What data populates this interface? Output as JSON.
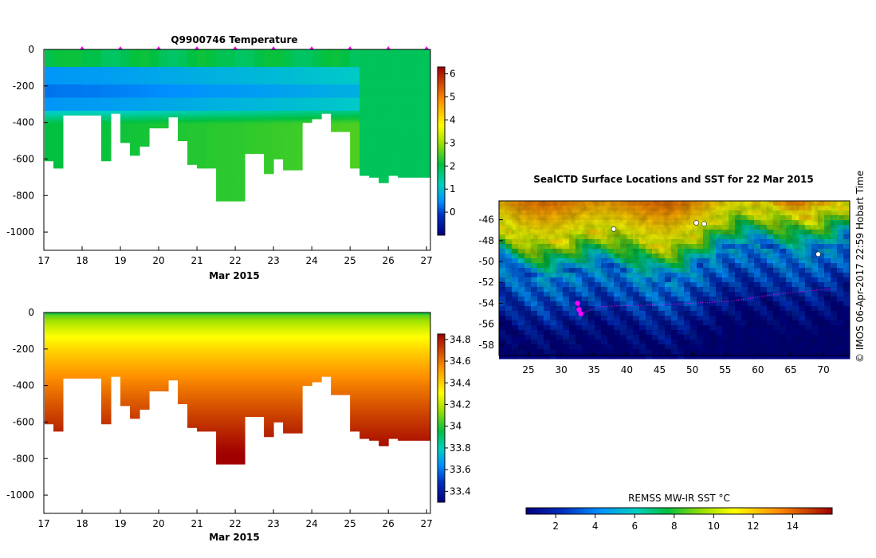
{
  "chart_data": [
    {
      "type": "heatmap",
      "title": "Q9900746  Temperature",
      "xlabel": "Mar 2015",
      "ylabel": "",
      "x_ticks": [
        "17",
        "18",
        "19",
        "20",
        "21",
        "22",
        "23",
        "24",
        "25",
        "26",
        "27"
      ],
      "xlim": [
        17,
        27.1
      ],
      "y_ticks": [
        "0",
        "-200",
        "-400",
        "-600",
        "-800",
        "-1000"
      ],
      "ylim": [
        -1100,
        0
      ],
      "colorbar": {
        "ticks": [
          "6",
          "5",
          "4",
          "3",
          "2",
          "1",
          "0"
        ],
        "range": [
          -1,
          6.3
        ]
      },
      "profile_days": [
        17.0,
        17.25,
        17.5,
        18.0,
        18.5,
        18.75,
        19.0,
        19.25,
        19.5,
        19.75,
        20.0,
        20.25,
        20.5,
        20.75,
        21.0,
        21.25,
        21.5,
        22.0,
        22.25,
        22.5,
        22.75,
        23.0,
        23.25,
        23.5,
        23.75,
        24.0,
        24.25,
        24.5,
        24.75,
        25.0,
        25.25,
        25.5,
        25.75,
        26.0,
        26.25,
        26.5,
        26.75,
        27.0
      ],
      "max_depth_m": [
        610,
        650,
        360,
        360,
        610,
        350,
        510,
        580,
        530,
        430,
        430,
        370,
        500,
        630,
        650,
        650,
        830,
        830,
        570,
        570,
        680,
        600,
        660,
        660,
        400,
        380,
        350,
        450,
        450,
        650,
        690,
        700,
        730,
        690,
        700,
        700,
        700,
        700
      ],
      "surface_markers_days": [
        18,
        19,
        20,
        21,
        22,
        23,
        24,
        25,
        26,
        27
      ]
    },
    {
      "type": "heatmap",
      "title": "",
      "xlabel": "Mar 2015",
      "ylabel": "",
      "x_ticks": [
        "17",
        "18",
        "19",
        "20",
        "21",
        "22",
        "23",
        "24",
        "25",
        "26",
        "27"
      ],
      "xlim": [
        17,
        27.1
      ],
      "y_ticks": [
        "0",
        "-200",
        "-400",
        "-600",
        "-800",
        "-1000"
      ],
      "ylim": [
        -1100,
        0
      ],
      "colorbar": {
        "ticks": [
          "34.8",
          "34.6",
          "34.4",
          "34.2",
          "34",
          "33.8",
          "33.6",
          "33.4"
        ],
        "range": [
          33.3,
          34.85
        ]
      },
      "profile_days": [
        17.0,
        17.25,
        17.5,
        18.0,
        18.5,
        18.75,
        19.0,
        19.25,
        19.5,
        19.75,
        20.0,
        20.25,
        20.5,
        20.75,
        21.0,
        21.25,
        21.5,
        22.0,
        22.25,
        22.5,
        22.75,
        23.0,
        23.25,
        23.5,
        23.75,
        24.0,
        24.25,
        24.5,
        24.75,
        25.0,
        25.25,
        25.5,
        25.75,
        26.0,
        26.25,
        26.5,
        26.75,
        27.0
      ],
      "max_depth_m": [
        610,
        650,
        360,
        360,
        610,
        350,
        510,
        580,
        530,
        430,
        430,
        370,
        500,
        630,
        650,
        650,
        830,
        830,
        570,
        570,
        680,
        600,
        660,
        660,
        400,
        380,
        350,
        450,
        450,
        650,
        690,
        700,
        730,
        690,
        700,
        700,
        700,
        700
      ]
    },
    {
      "type": "heatmap",
      "title": "SealCTD Surface Locations and SST for 22 Mar 2015",
      "xlabel": "",
      "ylabel": "",
      "x_ticks": [
        "25",
        "30",
        "35",
        "40",
        "45",
        "50",
        "55",
        "60",
        "65",
        "70"
      ],
      "xlim": [
        20.5,
        74
      ],
      "y_ticks": [
        "-46",
        "-48",
        "-50",
        "-52",
        "-54",
        "-56",
        "-58"
      ],
      "ylim": [
        -59,
        -44.2
      ],
      "colorbar": {
        "label": "REMSS MW-IR SST °C",
        "ticks": [
          "2",
          "4",
          "6",
          "8",
          "10",
          "12",
          "14"
        ],
        "range": [
          0.5,
          16
        ]
      },
      "seal_track": [
        [
          32.5,
          -54.0
        ],
        [
          32.7,
          -54.6
        ],
        [
          33.0,
          -55.0
        ],
        [
          36,
          -54.3
        ],
        [
          42,
          -54.2
        ],
        [
          50,
          -54.0
        ],
        [
          56,
          -53.8
        ],
        [
          62,
          -53.2
        ],
        [
          68,
          -52.8
        ],
        [
          72,
          -52.6
        ]
      ],
      "side_label": "© IMOS 06-Apr-2017 22:59 Hobart Time"
    }
  ]
}
